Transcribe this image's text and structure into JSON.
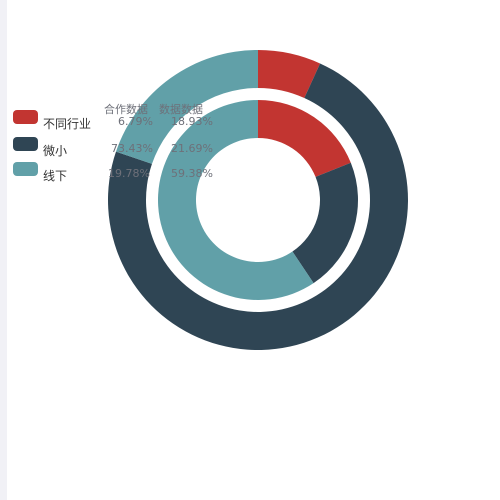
{
  "chart_data": {
    "type": "pie",
    "title": "",
    "legend_position": "left",
    "legend_columns": [
      "合作数据",
      "数据数据"
    ],
    "categories": [
      "不同行业",
      "微小",
      "线下"
    ],
    "colors": [
      "#c23531",
      "#2f4554",
      "#61a0a8"
    ],
    "series": [
      {
        "name": "合作数据",
        "ring": "outer",
        "values": [
          6.79,
          73.43,
          19.78
        ],
        "labels": [
          "6.79%",
          "73.43%",
          "19.78%"
        ]
      },
      {
        "name": "数据数据",
        "ring": "inner",
        "values": [
          18.93,
          21.69,
          59.38
        ],
        "labels": [
          "18.93%",
          "21.69%",
          "59.38%"
        ]
      }
    ]
  }
}
